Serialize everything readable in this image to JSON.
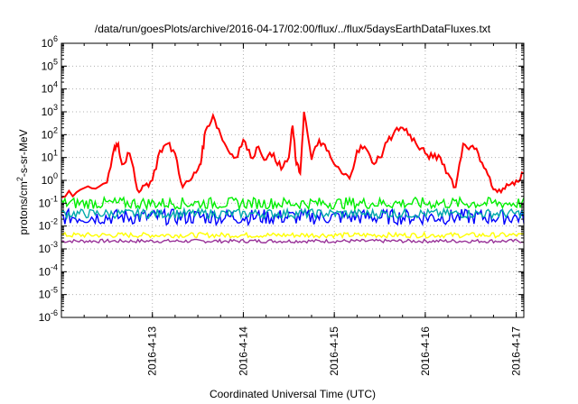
{
  "chart_data": {
    "type": "line",
    "title": "/data/run/goesPlots/archive/2016-04-17/02:00/flux/../flux/5daysEarthDataFluxes.txt",
    "xlabel": "Coordinated Universal Time (UTC)",
    "ylabel": {
      "prefix": "protons/cm",
      "sup": "2",
      "suffix": "-s-sr-MeV"
    },
    "y_scale": "log",
    "ylim": [
      1e-06,
      1000000.0
    ],
    "y_ticks": [
      {
        "base": "10",
        "exp": "-6"
      },
      {
        "base": "10",
        "exp": "-5"
      },
      {
        "base": "10",
        "exp": "-4"
      },
      {
        "base": "10",
        "exp": "-3"
      },
      {
        "base": "10",
        "exp": "-2"
      },
      {
        "base": "10",
        "exp": "-1"
      },
      {
        "base": "10",
        "exp": "0"
      },
      {
        "base": "10",
        "exp": "1"
      },
      {
        "base": "10",
        "exp": "2"
      },
      {
        "base": "10",
        "exp": "3"
      },
      {
        "base": "10",
        "exp": "4"
      },
      {
        "base": "10",
        "exp": "5"
      },
      {
        "base": "10",
        "exp": "6"
      }
    ],
    "xlim": [
      "2016-04-12 00:00",
      "2016-04-17 02:00"
    ],
    "x_ticks": [
      "2016-4-13",
      "2016-4-14",
      "2016-4-15",
      "2016-4-16",
      "2016-4-17"
    ],
    "grid": true,
    "legend": "none",
    "series": [
      {
        "color": "#ff0000",
        "x": [
          "2016-04-12 00:00",
          "2016-04-12 04:00",
          "2016-04-12 08:00",
          "2016-04-12 12:00",
          "2016-04-12 14:00",
          "2016-04-12 15:00",
          "2016-04-12 16:00",
          "2016-04-12 18:00",
          "2016-04-12 20:00",
          "2016-04-12 22:00",
          "2016-04-13 00:00",
          "2016-04-13 02:00",
          "2016-04-13 04:00",
          "2016-04-13 06:00",
          "2016-04-13 08:00",
          "2016-04-13 10:00",
          "2016-04-13 12:00",
          "2016-04-13 13:00",
          "2016-04-13 14:00",
          "2016-04-13 16:00",
          "2016-04-13 18:00",
          "2016-04-13 20:00",
          "2016-04-13 22:00",
          "2016-04-14 00:00",
          "2016-04-14 02:00",
          "2016-04-14 04:00",
          "2016-04-14 06:00",
          "2016-04-14 08:00",
          "2016-04-14 10:00",
          "2016-04-14 12:00",
          "2016-04-14 13:00",
          "2016-04-14 14:00",
          "2016-04-14 15:00",
          "2016-04-14 16:00",
          "2016-04-14 18:00",
          "2016-04-14 20:00",
          "2016-04-14 22:00",
          "2016-04-15 00:00",
          "2016-04-15 02:00",
          "2016-04-15 04:00",
          "2016-04-15 06:00",
          "2016-04-15 08:00",
          "2016-04-15 10:00",
          "2016-04-15 12:00",
          "2016-04-15 14:00",
          "2016-04-15 16:00",
          "2016-04-15 18:00",
          "2016-04-15 20:00",
          "2016-04-15 22:00",
          "2016-04-16 00:00",
          "2016-04-16 02:00",
          "2016-04-16 04:00",
          "2016-04-16 06:00",
          "2016-04-16 08:00",
          "2016-04-16 10:00",
          "2016-04-16 12:00",
          "2016-04-16 14:00",
          "2016-04-16 16:00",
          "2016-04-16 18:00",
          "2016-04-16 20:00",
          "2016-04-16 22:00",
          "2016-04-17 00:00",
          "2016-04-17 02:00"
        ],
        "y": [
          0.18,
          0.3,
          0.45,
          0.8,
          30,
          40,
          5,
          15,
          0.4,
          0.6,
          1.0,
          20,
          40,
          15,
          0.5,
          1.0,
          3,
          10,
          150,
          700,
          100,
          20,
          10,
          60,
          10,
          30,
          8,
          15,
          3,
          10,
          250,
          5,
          2,
          1000,
          8,
          60,
          20,
          5,
          2,
          1.2,
          20,
          30,
          6,
          10,
          50,
          150,
          200,
          100,
          30,
          15,
          10,
          10,
          2,
          0.5,
          40,
          30,
          15,
          3,
          0.4,
          0.3,
          0.6,
          1.0,
          2.0
        ]
      },
      {
        "color": "#00ee00",
        "base": 0.1,
        "spread": 1.8
      },
      {
        "color": "#00aaaa",
        "base": 0.035,
        "spread": 1.6
      },
      {
        "color": "#0000ff",
        "base": 0.025,
        "spread": 2.2
      },
      {
        "color": "#ffff00",
        "base": 0.004,
        "spread": 1.3
      },
      {
        "color": "#993399",
        "base": 0.0022,
        "spread": 1.2
      }
    ]
  }
}
